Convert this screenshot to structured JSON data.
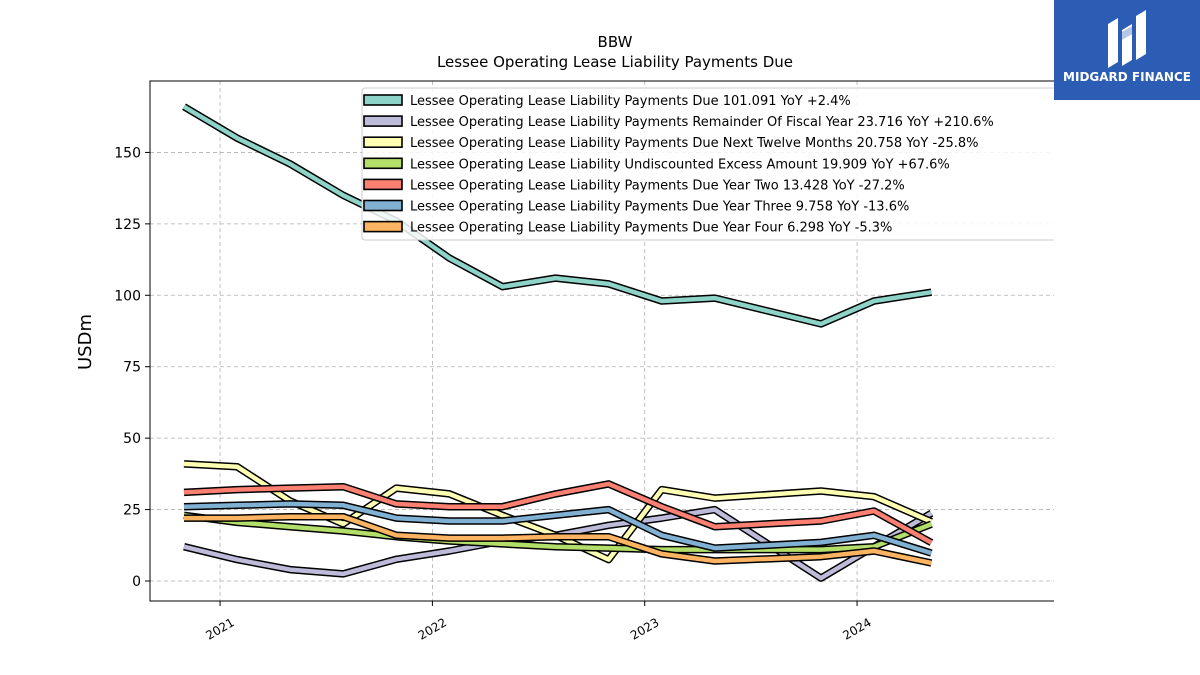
{
  "logo": {
    "text": "MIDGARD FINANCE"
  },
  "chart_data": {
    "type": "line",
    "title": "BBW",
    "subtitle": "Lessee Operating Lease Liability Payments Due",
    "ylabel": "USDm",
    "xlabel": "",
    "ylim": [
      -7,
      175
    ],
    "xlim": [
      2020.67,
      2025.05
    ],
    "yticks": [
      0,
      25,
      50,
      75,
      100,
      125,
      150
    ],
    "xticks": [
      2021,
      2022,
      2023,
      2024
    ],
    "grid": true,
    "legend_position": "top-right",
    "x": [
      2020.83,
      2021.08,
      2021.33,
      2021.58,
      2021.83,
      2022.08,
      2022.33,
      2022.58,
      2022.83,
      2023.08,
      2023.33,
      2023.83,
      2024.08,
      2024.35
    ],
    "series": [
      {
        "name": "Lessee Operating Lease Liability Payments Due  101.091 YoY +2.4%",
        "color": "#8dd3c7",
        "values": [
          166,
          155,
          146,
          135,
          126,
          113,
          103,
          106,
          104,
          98,
          99,
          90,
          98,
          101.091
        ]
      },
      {
        "name": "Lessee Operating Lease Liability Payments Remainder Of Fiscal Year  23.716 YoY +210.6%",
        "color": "#bebada",
        "values": [
          12,
          7.5,
          4,
          2.5,
          7.6,
          10.5,
          14,
          16,
          19.5,
          22,
          25,
          1,
          12,
          23.716
        ]
      },
      {
        "name": "Lessee Operating Lease Liability Payments Due Next Twelve Months  20.758 YoY -25.8%",
        "color": "#ffffb3",
        "values": [
          41,
          40,
          28,
          20,
          32.5,
          30.5,
          23,
          16,
          7.5,
          32,
          29,
          31.5,
          29.5,
          20.758
        ]
      },
      {
        "name": "Lessee Operating Lease Liability Undiscounted Excess Amount  19.909 YoY +67.6%",
        "color": "#b3de69",
        "values": [
          23,
          20.5,
          19,
          17.5,
          15.5,
          14,
          13,
          12,
          11.5,
          11,
          11,
          11,
          12,
          19.909
        ]
      },
      {
        "name": "Lessee Operating Lease Liability Payments Due Year Two  13.428 YoY -27.2%",
        "color": "#fb8072",
        "values": [
          31,
          32,
          32.5,
          33,
          27,
          26,
          26,
          30.5,
          34,
          26,
          19,
          21,
          24.5,
          13.428
        ]
      },
      {
        "name": "Lessee Operating Lease Liability Payments Due Year Three  9.758 YoY -13.6%",
        "color": "#80b1d3",
        "values": [
          26,
          26.5,
          27,
          26.5,
          22,
          21,
          21,
          23,
          25,
          16,
          11.5,
          13.5,
          16,
          9.758
        ]
      },
      {
        "name": "Lessee Operating Lease Liability Payments Due Year Four  6.298 YoY -5.3%",
        "color": "#fdb462",
        "values": [
          22,
          22,
          22.5,
          22.5,
          16,
          15,
          15,
          15.5,
          15.5,
          9.5,
          7,
          8.5,
          10.5,
          6.298
        ]
      }
    ]
  }
}
